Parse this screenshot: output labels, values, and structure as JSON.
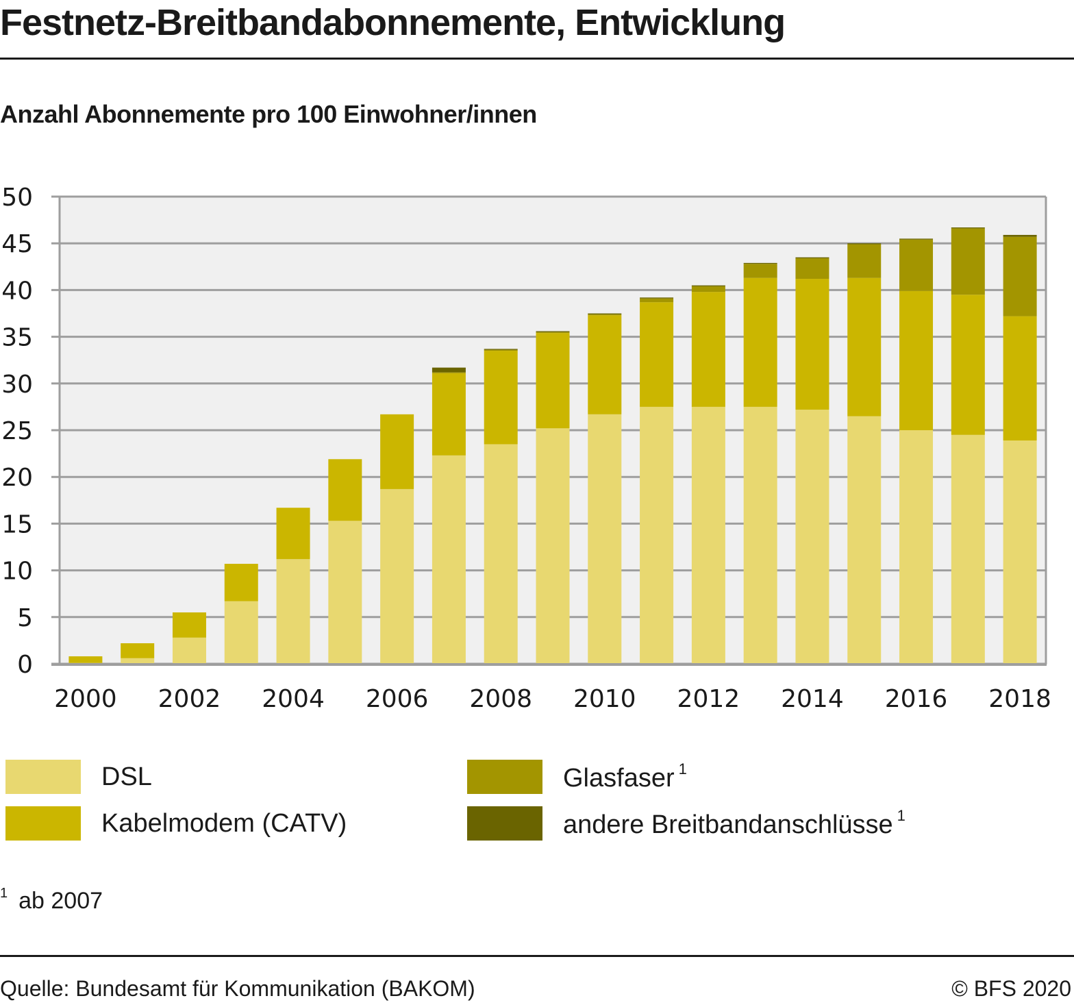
{
  "header": {
    "title": "Festnetz-Breitbandabonnemente, Entwicklung",
    "subtitle": "Anzahl Abonnemente pro 100 Einwohner/innen"
  },
  "chart_data": {
    "type": "bar",
    "stacked": true,
    "title": "Festnetz-Breitbandabonnemente, Entwicklung",
    "subtitle": "Anzahl Abonnemente pro 100 Einwohner/innen",
    "xlabel": "",
    "ylabel": "Anzahl Abonnemente pro 100 Einwohner/innen",
    "ylim": [
      0,
      50
    ],
    "yticks": [
      0,
      5,
      10,
      15,
      20,
      25,
      30,
      35,
      40,
      45,
      50
    ],
    "grid": true,
    "categories": [
      "2000",
      "2001",
      "2002",
      "2003",
      "2004",
      "2005",
      "2006",
      "2007",
      "2008",
      "2009",
      "2010",
      "2011",
      "2012",
      "2013",
      "2014",
      "2015",
      "2016",
      "2017",
      "2018"
    ],
    "xtick_labels": [
      "2000",
      "2002",
      "2004",
      "2006",
      "2008",
      "2010",
      "2012",
      "2014",
      "2016",
      "2018"
    ],
    "series": [
      {
        "name": "DSL",
        "color": "#e8d870",
        "values": [
          0.1,
          0.6,
          2.8,
          6.7,
          11.2,
          15.3,
          18.7,
          22.3,
          23.5,
          25.2,
          26.7,
          27.5,
          27.5,
          27.5,
          27.2,
          26.5,
          25.0,
          24.5,
          23.9
        ]
      },
      {
        "name": "Kabelmodem (CATV)",
        "color": "#cbb600",
        "values": [
          0.7,
          1.6,
          2.7,
          4.0,
          5.5,
          6.6,
          8.0,
          8.8,
          10.0,
          10.2,
          10.6,
          11.2,
          12.3,
          13.8,
          14.0,
          14.8,
          14.9,
          15.0,
          13.3
        ]
      },
      {
        "name": "Glasfaser",
        "footnote": "1",
        "color": "#a39500",
        "values": [
          0,
          0,
          0,
          0,
          0,
          0,
          0,
          0.1,
          0.1,
          0.1,
          0.1,
          0.4,
          0.6,
          1.5,
          2.2,
          3.6,
          5.5,
          7.1,
          8.5
        ]
      },
      {
        "name": "andere Breitbandanschlüsse",
        "footnote": "1",
        "color": "#6a6400",
        "values": [
          0,
          0,
          0,
          0,
          0,
          0,
          0,
          0.5,
          0.1,
          0.1,
          0.1,
          0.1,
          0.1,
          0.1,
          0.1,
          0.1,
          0.1,
          0.1,
          0.2
        ]
      }
    ],
    "legend": {
      "placement": "bottom",
      "columns": 2
    },
    "footnote": "ab 2007",
    "source": "Quelle: Bundesamt für Kommunikation (BAKOM)"
  },
  "legend": {
    "items": [
      {
        "label": "DSL",
        "sup": ""
      },
      {
        "label": "Kabelmodem (CATV)",
        "sup": ""
      },
      {
        "label": "Glasfaser",
        "sup": "1"
      },
      {
        "label": "andere Breitbandanschlüsse",
        "sup": "1"
      }
    ]
  },
  "footnote": {
    "marker": "1",
    "text": "ab 2007"
  },
  "footer": {
    "source": "Quelle: Bundesamt für Kommunikation (BAKOM)",
    "copyright": "© BFS 2020"
  },
  "colors": {
    "plot_background": "#f0f0f0",
    "gridline": "#9e9e9e",
    "dsl": "#e8d870",
    "catv": "#cbb600",
    "glasfaser": "#a39500",
    "andere": "#6a6400"
  }
}
